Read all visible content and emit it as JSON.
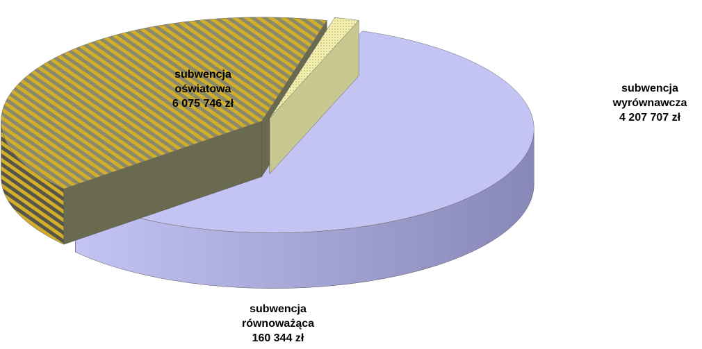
{
  "chart_data": {
    "type": "pie3d",
    "categories": [
      "subwencja oświatowa",
      "subwencja wyrównawcza",
      "subwencja równoważąca"
    ],
    "values": [
      6075746,
      4207707,
      160344
    ],
    "value_labels": [
      "6 075 746 zł",
      "4 207 707 zł",
      "160 344 zł"
    ],
    "colors": [
      "#c4c4f4",
      "#d2ae2a",
      "#f4f0a8"
    ]
  }
}
